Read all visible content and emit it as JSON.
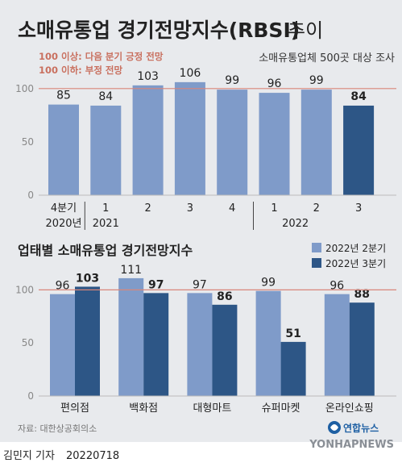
{
  "header": {
    "title_main": "소매유통업 경기전망지수(RBSI)",
    "title_suffix": "추이",
    "survey_note": "소매유통업체 500곳 대상 조사",
    "legend_above": "100 이상: 다음 분기 긍정 전망",
    "legend_below": "100 이하: 부정 전망"
  },
  "colors": {
    "bar_light": "#7f9bc9",
    "bar_dark": "#2d5686",
    "reference_line": "#d9867a",
    "text_dark": "#222222",
    "text_gray": "#777777",
    "background": "#e8eaed"
  },
  "chart_data": [
    {
      "type": "bar",
      "title": "",
      "categories": [
        "4분기",
        "1",
        "2",
        "3",
        "4",
        "1",
        "2",
        "3"
      ],
      "year_labels": [
        "2020년",
        "2021",
        "2022"
      ],
      "values": [
        85,
        84,
        103,
        106,
        99,
        96,
        99,
        84
      ],
      "highlight_index": 7,
      "ylim": [
        0,
        110
      ],
      "yticks": [
        0,
        50,
        100
      ],
      "reference_line": 100,
      "grid": false
    },
    {
      "type": "bar",
      "title": "업태별 소매유통업 경기전망지수",
      "categories": [
        "편의점",
        "백화점",
        "대형마트",
        "슈퍼마켓",
        "온라인쇼핑"
      ],
      "series": [
        {
          "name": "2022년 2분기",
          "values": [
            96,
            111,
            97,
            99,
            96
          ]
        },
        {
          "name": "2022년 3분기",
          "values": [
            103,
            97,
            86,
            51,
            88
          ]
        }
      ],
      "ylim": [
        0,
        115
      ],
      "yticks": [
        0,
        50,
        100
      ],
      "reference_line": 100,
      "legend": "top-right",
      "grid": false
    }
  ],
  "source": "자료: 대한상공회의소",
  "agency": {
    "logo_text": "연합뉴스",
    "wordmark": "YONHAPNEWS"
  },
  "credit": {
    "reporter": "김민지 기자",
    "date": "20220718"
  }
}
